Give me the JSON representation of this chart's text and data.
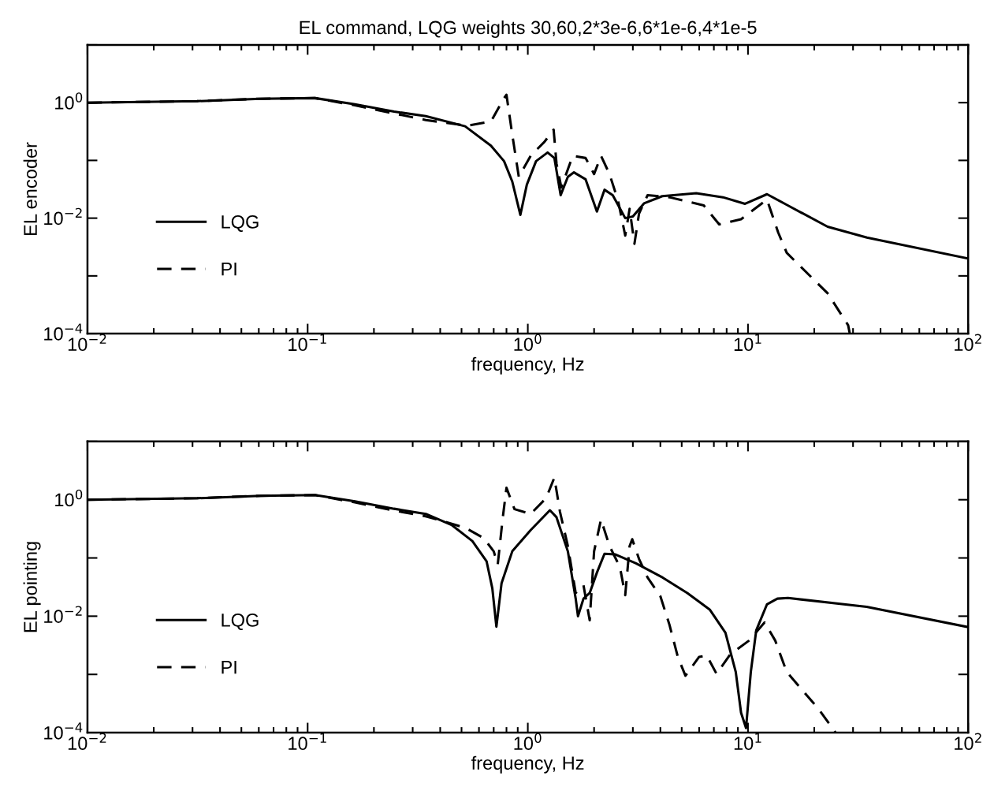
{
  "chart_data": [
    {
      "type": "line",
      "title": "EL command, LQG weights 30,60,2*3e-6,6*1e-6,4*1e-5",
      "xlabel": "frequency, Hz",
      "ylabel": "EL encoder",
      "log": "xy",
      "grid": false,
      "legend": "left",
      "xlim": [
        0.01,
        100
      ],
      "xticks": [
        {
          "value": 0.01,
          "label": "10$^{−2}$"
        },
        {
          "value": 0.1,
          "label": "10$^{−1}$"
        },
        {
          "value": 1,
          "label": "10$^{0}$"
        },
        {
          "value": 10,
          "label": "10$^{1}$"
        },
        {
          "value": 100,
          "label": "10$^{2}$"
        }
      ],
      "ylim": [
        0.0001,
        10
      ],
      "yticks": [
        {
          "value": 0.0001,
          "label": "10$^{−4}$"
        },
        {
          "value": 0.001,
          "label": null
        },
        {
          "value": 0.01,
          "label": "10$^{−2}$"
        },
        {
          "value": 0.1,
          "label": null
        },
        {
          "value": 1,
          "label": "10$^{0}$"
        },
        {
          "value": 10,
          "label": null
        }
      ],
      "series": [
        {
          "name": "LQG",
          "color": "#000000",
          "line_style": "solid",
          "x": [
            0.01,
            0.0315,
            0.061,
            0.108,
            0.164,
            0.247,
            0.344,
            0.519,
            0.68,
            0.78,
            0.85,
            0.925,
            0.99,
            1.09,
            1.23,
            1.32,
            1.41,
            1.52,
            1.62,
            1.83,
            2.06,
            2.23,
            2.43,
            2.77,
            3.0,
            3.37,
            4.08,
            5.82,
            7.7,
            9.7,
            12.2,
            15,
            23,
            34.7,
            100
          ],
          "values": [
            1.0,
            1.06,
            1.17,
            1.2,
            0.94,
            0.7,
            0.585,
            0.39,
            0.18,
            0.097,
            0.043,
            0.0114,
            0.038,
            0.097,
            0.137,
            0.11,
            0.025,
            0.052,
            0.062,
            0.047,
            0.013,
            0.031,
            0.025,
            0.01,
            0.0107,
            0.018,
            0.024,
            0.027,
            0.023,
            0.0177,
            0.026,
            0.017,
            0.0071,
            0.0046,
            0.002
          ]
        },
        {
          "name": "PI",
          "color": "#000000",
          "line_style": "dashed",
          "x": [
            0.01,
            0.0315,
            0.061,
            0.108,
            0.164,
            0.247,
            0.344,
            0.53,
            0.68,
            0.78,
            0.8,
            0.85,
            0.91,
            1.03,
            1.19,
            1.31,
            1.35,
            1.42,
            1.6,
            1.83,
            2.0,
            2.15,
            2.35,
            2.57,
            2.77,
            2.9,
            3.05,
            3.2,
            3.5,
            4.4,
            6.3,
            7.4,
            9.3,
            12.2,
            13.7,
            15,
            23,
            28.5,
            29
          ],
          "values": [
            1.0,
            1.06,
            1.17,
            1.2,
            0.9,
            0.65,
            0.5,
            0.4,
            0.47,
            1.2,
            1.37,
            0.28,
            0.052,
            0.12,
            0.21,
            0.34,
            0.088,
            0.034,
            0.12,
            0.11,
            0.058,
            0.12,
            0.058,
            0.02,
            0.005,
            0.0145,
            0.0036,
            0.012,
            0.025,
            0.023,
            0.0166,
            0.0078,
            0.0096,
            0.021,
            0.0057,
            0.0025,
            0.0005,
            0.00014,
            0.0001
          ]
        }
      ]
    },
    {
      "type": "line",
      "xlabel": "frequency, Hz",
      "ylabel": "EL pointing",
      "log": "xy",
      "grid": false,
      "legend": "left",
      "xlim": [
        0.01,
        100
      ],
      "xticks": [
        {
          "value": 0.01,
          "label": "10$^{−2}$"
        },
        {
          "value": 0.1,
          "label": "10$^{−1}$"
        },
        {
          "value": 1,
          "label": "10$^{0}$"
        },
        {
          "value": 10,
          "label": "10$^{1}$"
        },
        {
          "value": 100,
          "label": "10$^{2}$"
        }
      ],
      "ylim": [
        0.0001,
        10
      ],
      "yticks": [
        {
          "value": 0.0001,
          "label": "10$^{−4}$"
        },
        {
          "value": 0.001,
          "label": null
        },
        {
          "value": 0.01,
          "label": "10$^{−2}$"
        },
        {
          "value": 0.1,
          "label": null
        },
        {
          "value": 1,
          "label": "10$^{0}$"
        },
        {
          "value": 10,
          "label": null
        }
      ],
      "series": [
        {
          "name": "LQG",
          "color": "#000000",
          "line_style": "solid",
          "x": [
            0.01,
            0.0315,
            0.061,
            0.108,
            0.164,
            0.247,
            0.344,
            0.45,
            0.56,
            0.65,
            0.69,
            0.72,
            0.76,
            0.85,
            1.03,
            1.26,
            1.35,
            1.52,
            1.65,
            1.69,
            1.79,
            1.91,
            2.06,
            2.23,
            2.5,
            3.1,
            4.1,
            5.3,
            6.7,
            7.9,
            8.8,
            9.3,
            9.8,
            10.3,
            10.9,
            12.2,
            13.6,
            15.2,
            34.6,
            100
          ],
          "values": [
            1.0,
            1.06,
            1.17,
            1.2,
            0.94,
            0.7,
            0.57,
            0.37,
            0.195,
            0.087,
            0.03,
            0.0066,
            0.037,
            0.13,
            0.3,
            0.66,
            0.5,
            0.13,
            0.02,
            0.01,
            0.02,
            0.025,
            0.056,
            0.118,
            0.115,
            0.081,
            0.046,
            0.025,
            0.013,
            0.0052,
            0.0011,
            0.00022,
            0.00012,
            0.0011,
            0.0057,
            0.016,
            0.02,
            0.0205,
            0.0145,
            0.0065
          ]
        },
        {
          "name": "PI",
          "color": "#000000",
          "line_style": "dashed",
          "x": [
            0.01,
            0.0315,
            0.061,
            0.108,
            0.164,
            0.247,
            0.344,
            0.52,
            0.63,
            0.7,
            0.73,
            0.77,
            0.8,
            0.87,
            1.03,
            1.21,
            1.32,
            1.4,
            1.52,
            1.65,
            1.79,
            1.91,
            2.0,
            2.15,
            2.35,
            2.62,
            2.77,
            2.9,
            2.98,
            3.2,
            3.5,
            4.0,
            4.4,
            4.8,
            5.2,
            6.0,
            6.5,
            7.2,
            8.3,
            10.1,
            11.9,
            13.3,
            15,
            21,
            25
          ],
          "values": [
            1.0,
            1.06,
            1.17,
            1.2,
            0.9,
            0.65,
            0.52,
            0.33,
            0.22,
            0.13,
            0.077,
            0.5,
            1.6,
            0.69,
            0.57,
            1.06,
            2.4,
            0.62,
            0.16,
            0.025,
            0.034,
            0.0085,
            0.13,
            0.46,
            0.16,
            0.07,
            0.023,
            0.16,
            0.21,
            0.096,
            0.046,
            0.022,
            0.0071,
            0.002,
            0.00095,
            0.002,
            0.0021,
            0.00102,
            0.0022,
            0.0038,
            0.0078,
            0.0038,
            0.0011,
            0.00025,
            0.0001
          ]
        }
      ]
    }
  ]
}
